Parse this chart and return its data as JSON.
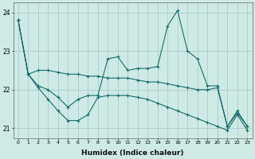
{
  "xlabel": "Humidex (Indice chaleur)",
  "background_color": "#ceeae4",
  "grid_color": "#aacccc",
  "line_color": "#1a6b6b",
  "xlim": [
    -0.5,
    23.5
  ],
  "ylim": [
    20.75,
    24.25
  ],
  "yticks": [
    21,
    22,
    23,
    24
  ],
  "xticks": [
    0,
    1,
    2,
    3,
    4,
    5,
    6,
    7,
    8,
    9,
    10,
    11,
    12,
    13,
    14,
    15,
    16,
    17,
    18,
    19,
    20,
    21,
    22,
    23
  ],
  "series": [
    {
      "x": [
        0,
        1,
        2,
        3,
        4,
        5,
        6,
        7,
        8,
        9,
        10,
        11,
        12,
        13,
        14,
        15,
        16,
        17,
        18,
        19,
        20,
        21,
        22,
        23
      ],
      "y": [
        23.8,
        22.4,
        22.5,
        22.5,
        22.45,
        22.4,
        22.4,
        22.35,
        22.35,
        22.3,
        22.3,
        22.3,
        22.25,
        22.2,
        22.2,
        22.15,
        22.1,
        22.05,
        22.0,
        22.0,
        22.05,
        21.05,
        21.4,
        21.05
      ]
    },
    {
      "x": [
        0,
        1,
        2,
        3,
        4,
        5,
        6,
        7,
        8,
        9,
        10,
        11,
        12,
        13,
        14,
        15,
        16,
        17,
        18,
        19,
        20,
        21,
        22,
        23
      ],
      "y": [
        23.8,
        22.4,
        22.1,
        22.0,
        21.8,
        21.55,
        21.75,
        21.85,
        21.85,
        22.8,
        22.85,
        22.5,
        22.55,
        22.55,
        22.6,
        23.65,
        24.05,
        23.0,
        22.8,
        22.1,
        22.1,
        21.05,
        21.45,
        21.05
      ]
    },
    {
      "x": [
        0,
        1,
        2,
        3,
        4,
        5,
        6,
        7,
        8,
        9,
        10,
        11,
        12,
        13,
        14,
        15,
        16,
        17,
        18,
        19,
        20,
        21,
        22,
        23
      ],
      "y": [
        23.8,
        22.4,
        22.05,
        21.75,
        21.45,
        21.2,
        21.2,
        21.35,
        21.8,
        21.85,
        21.85,
        21.85,
        21.8,
        21.75,
        21.65,
        21.55,
        21.45,
        21.35,
        21.25,
        21.15,
        21.05,
        20.95,
        21.35,
        20.95
      ]
    }
  ]
}
